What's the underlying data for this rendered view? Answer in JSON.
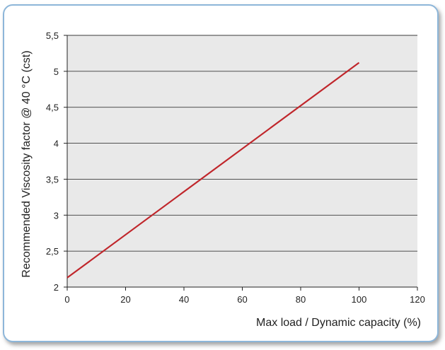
{
  "chart_data": {
    "type": "line",
    "title": "",
    "xlabel": "Max load / Dynamic capacity (%)",
    "ylabel": "Recommended Viscosity factor @ 40 °C (cst)",
    "xlim": [
      0,
      120
    ],
    "ylim": [
      2,
      5.5
    ],
    "xticks": [
      0,
      20,
      40,
      60,
      80,
      100,
      120
    ],
    "yticks": [
      2,
      2.5,
      3,
      3.5,
      4,
      4.5,
      5,
      5.5
    ],
    "xtick_labels": [
      "0",
      "20",
      "40",
      "60",
      "80",
      "100",
      "120"
    ],
    "ytick_labels": [
      "2",
      "2,5",
      "3",
      "3,5",
      "4",
      "4,5",
      "5",
      "5,5"
    ],
    "grid": "horizontal",
    "series": [
      {
        "x": [
          0,
          100
        ],
        "y": [
          2.13,
          5.12
        ]
      }
    ],
    "colors": {
      "line": "#c0262b",
      "plot_bg": "#e9e9e9",
      "grid": "#3a3a3a",
      "frame": "#8db6d9"
    }
  }
}
